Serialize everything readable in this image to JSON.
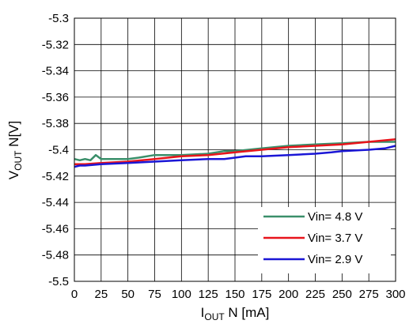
{
  "chart_data": {
    "type": "line",
    "xlabel": {
      "main": "I",
      "sub": "OUT",
      "rest": " N [mA]"
    },
    "ylabel": {
      "main": "V",
      "sub": "OUT",
      "rest": " N[V]"
    },
    "xlim": [
      0,
      300
    ],
    "ylim": [
      -5.5,
      -5.3
    ],
    "x_ticks": [
      "0",
      "25",
      "50",
      "75",
      "100",
      "125",
      "150",
      "175",
      "200",
      "225",
      "250",
      "275",
      "300"
    ],
    "y_ticks": [
      "-5.3",
      "-5.32",
      "-5.34",
      "-5.36",
      "-5.38",
      "-5.4",
      "-5.42",
      "-5.44",
      "-5.46",
      "-5.48",
      "-5.5"
    ],
    "grid": true,
    "legend_position": "bottom-right",
    "series": [
      {
        "name": "Vin= 4.8 V",
        "color": "#3a8f6a",
        "x": [
          0,
          5,
          10,
          15,
          20,
          25,
          30,
          40,
          50,
          60,
          75,
          100,
          125,
          140,
          150,
          175,
          200,
          225,
          250,
          275,
          300
        ],
        "y": [
          -5.407,
          -5.408,
          -5.407,
          -5.408,
          -5.404,
          -5.407,
          -5.407,
          -5.407,
          -5.407,
          -5.406,
          -5.404,
          -5.404,
          -5.403,
          -5.401,
          -5.401,
          -5.399,
          -5.397,
          -5.396,
          -5.395,
          -5.394,
          -5.394
        ]
      },
      {
        "name": "Vin= 3.7 V",
        "color": "#e8141b",
        "x": [
          0,
          10,
          25,
          50,
          75,
          100,
          125,
          150,
          175,
          200,
          225,
          250,
          275,
          300
        ],
        "y": [
          -5.411,
          -5.411,
          -5.41,
          -5.409,
          -5.407,
          -5.405,
          -5.404,
          -5.402,
          -5.4,
          -5.398,
          -5.397,
          -5.396,
          -5.394,
          -5.392
        ]
      },
      {
        "name": "Vin= 2.9 V",
        "color": "#1a16d6",
        "x": [
          0,
          5,
          10,
          25,
          50,
          75,
          100,
          125,
          140,
          150,
          160,
          175,
          200,
          225,
          240,
          250,
          275,
          290,
          300
        ],
        "y": [
          -5.413,
          -5.412,
          -5.412,
          -5.411,
          -5.41,
          -5.409,
          -5.408,
          -5.407,
          -5.407,
          -5.406,
          -5.405,
          -5.405,
          -5.404,
          -5.403,
          -5.402,
          -5.401,
          -5.4,
          -5.399,
          -5.397
        ]
      }
    ]
  }
}
